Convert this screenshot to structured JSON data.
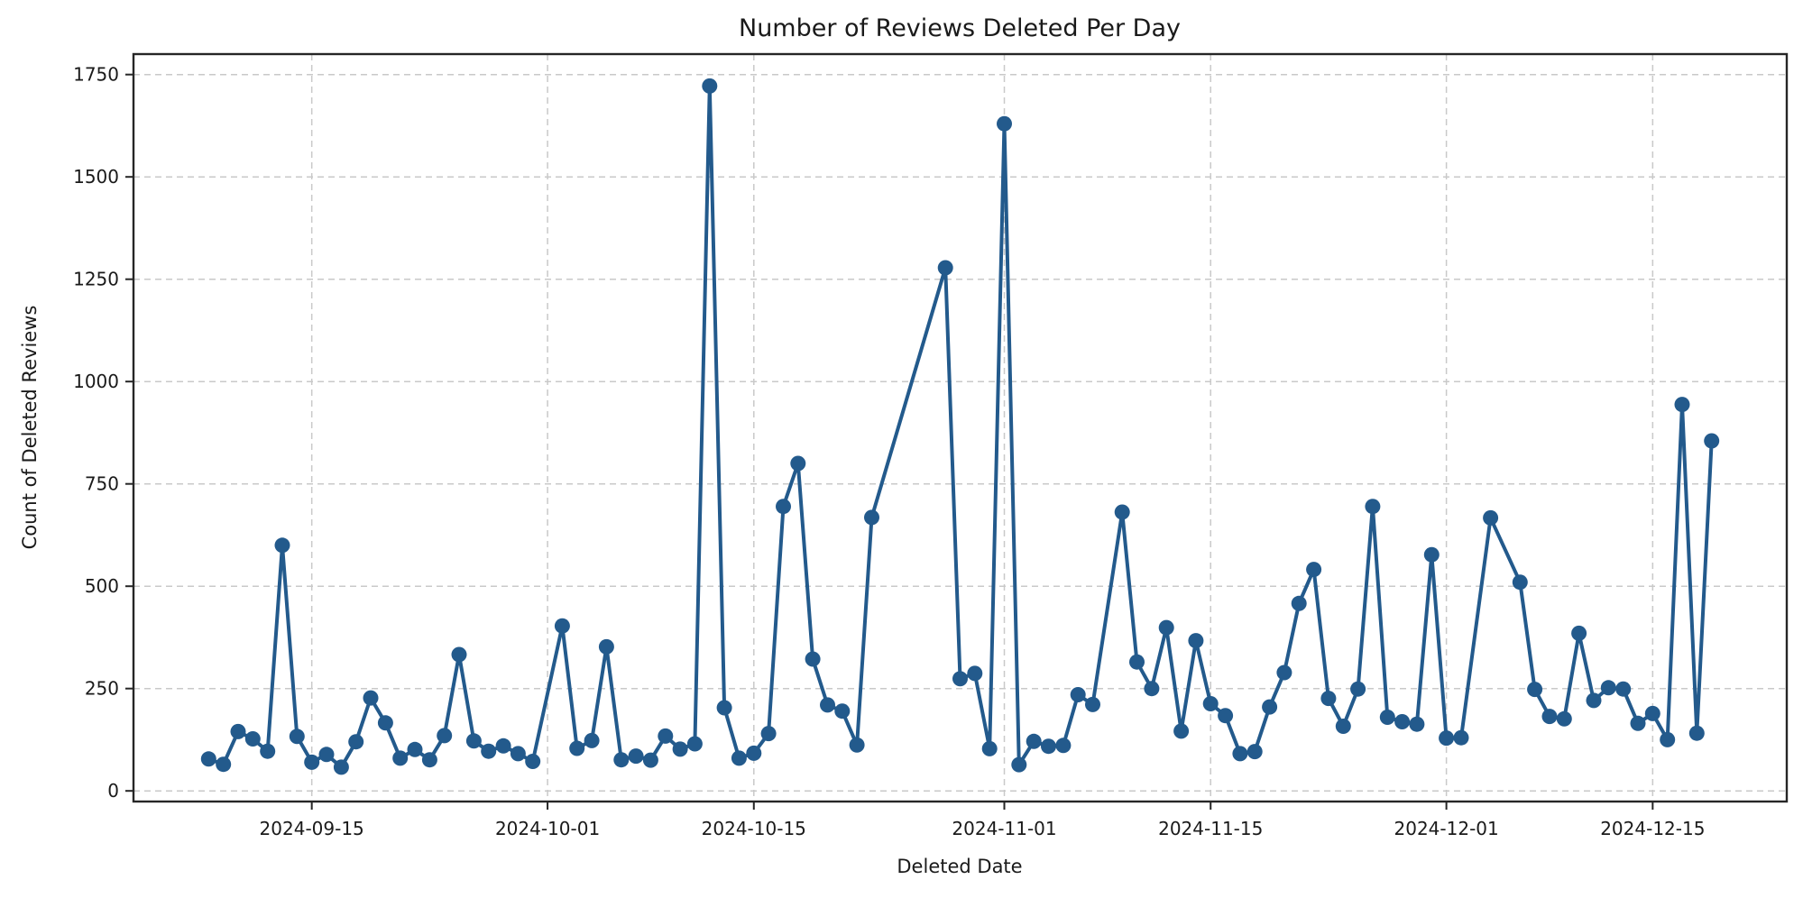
{
  "figure": {
    "background": "#ffffff"
  },
  "chart_data": {
    "type": "line",
    "title": "Number of Reviews Deleted Per Day",
    "xlabel": "Deleted Date",
    "ylabel": "Count of Deleted Reviews",
    "legend": null,
    "grid": true,
    "line_color": "#235a8c",
    "marker": "circle",
    "grid_color": "#c9c9c9",
    "spine_color": "#262626",
    "text_color": "#1a1a1a",
    "ylim": [
      -26,
      1800
    ],
    "x_pad_days": 5.1,
    "y_ticks": [
      0,
      250,
      500,
      750,
      1000,
      1250,
      1500,
      1750
    ],
    "x_ticks": [
      "2024-09-15",
      "2024-10-01",
      "2024-10-15",
      "2024-11-01",
      "2024-11-15",
      "2024-12-01",
      "2024-12-15"
    ],
    "series": [
      {
        "name": "reviews-deleted-per-day",
        "points": [
          [
            "2024-09-08",
            78
          ],
          [
            "2024-09-09",
            65
          ],
          [
            "2024-09-10",
            145
          ],
          [
            "2024-09-11",
            127
          ],
          [
            "2024-09-12",
            97
          ],
          [
            "2024-09-13",
            600
          ],
          [
            "2024-09-14",
            133
          ],
          [
            "2024-09-15",
            70
          ],
          [
            "2024-09-16",
            89
          ],
          [
            "2024-09-17",
            58
          ],
          [
            "2024-09-18",
            120
          ],
          [
            "2024-09-19",
            227
          ],
          [
            "2024-09-20",
            166
          ],
          [
            "2024-09-21",
            80
          ],
          [
            "2024-09-22",
            101
          ],
          [
            "2024-09-23",
            76
          ],
          [
            "2024-09-24",
            135
          ],
          [
            "2024-09-25",
            333
          ],
          [
            "2024-09-26",
            122
          ],
          [
            "2024-09-27",
            97
          ],
          [
            "2024-09-28",
            110
          ],
          [
            "2024-09-29",
            91
          ],
          [
            "2024-09-30",
            72
          ],
          [
            "2024-10-02",
            403
          ],
          [
            "2024-10-03",
            104
          ],
          [
            "2024-10-04",
            123
          ],
          [
            "2024-10-05",
            352
          ],
          [
            "2024-10-06",
            76
          ],
          [
            "2024-10-07",
            85
          ],
          [
            "2024-10-08",
            75
          ],
          [
            "2024-10-09",
            134
          ],
          [
            "2024-10-10",
            102
          ],
          [
            "2024-10-11",
            115
          ],
          [
            "2024-10-12",
            1722
          ],
          [
            "2024-10-13",
            203
          ],
          [
            "2024-10-14",
            80
          ],
          [
            "2024-10-15",
            92
          ],
          [
            "2024-10-16",
            140
          ],
          [
            "2024-10-17",
            695
          ],
          [
            "2024-10-18",
            800
          ],
          [
            "2024-10-19",
            322
          ],
          [
            "2024-10-20",
            210
          ],
          [
            "2024-10-21",
            195
          ],
          [
            "2024-10-22",
            112
          ],
          [
            "2024-10-23",
            668
          ],
          [
            "2024-10-28",
            1278
          ],
          [
            "2024-10-29",
            274
          ],
          [
            "2024-10-30",
            287
          ],
          [
            "2024-10-31",
            103
          ],
          [
            "2024-11-01",
            1630
          ],
          [
            "2024-11-02",
            64
          ],
          [
            "2024-11-03",
            121
          ],
          [
            "2024-11-04",
            109
          ],
          [
            "2024-11-05",
            111
          ],
          [
            "2024-11-06",
            235
          ],
          [
            "2024-11-07",
            211
          ],
          [
            "2024-11-09",
            681
          ],
          [
            "2024-11-10",
            315
          ],
          [
            "2024-11-11",
            250
          ],
          [
            "2024-11-12",
            399
          ],
          [
            "2024-11-13",
            146
          ],
          [
            "2024-11-14",
            367
          ],
          [
            "2024-11-15",
            213
          ],
          [
            "2024-11-16",
            184
          ],
          [
            "2024-11-17",
            91
          ],
          [
            "2024-11-18",
            96
          ],
          [
            "2024-11-19",
            205
          ],
          [
            "2024-11-20",
            289
          ],
          [
            "2024-11-21",
            458
          ],
          [
            "2024-11-22",
            541
          ],
          [
            "2024-11-23",
            226
          ],
          [
            "2024-11-24",
            158
          ],
          [
            "2024-11-25",
            249
          ],
          [
            "2024-11-26",
            695
          ],
          [
            "2024-11-27",
            180
          ],
          [
            "2024-11-28",
            169
          ],
          [
            "2024-11-29",
            163
          ],
          [
            "2024-11-30",
            577
          ],
          [
            "2024-12-01",
            129
          ],
          [
            "2024-12-02",
            130
          ],
          [
            "2024-12-04",
            667
          ],
          [
            "2024-12-06",
            510
          ],
          [
            "2024-12-07",
            248
          ],
          [
            "2024-12-08",
            182
          ],
          [
            "2024-12-09",
            176
          ],
          [
            "2024-12-10",
            385
          ],
          [
            "2024-12-11",
            221
          ],
          [
            "2024-12-12",
            252
          ],
          [
            "2024-12-13",
            249
          ],
          [
            "2024-12-14",
            165
          ],
          [
            "2024-12-15",
            189
          ],
          [
            "2024-12-16",
            125
          ],
          [
            "2024-12-17",
            944
          ],
          [
            "2024-12-18",
            141
          ],
          [
            "2024-12-19",
            855
          ]
        ]
      }
    ]
  }
}
